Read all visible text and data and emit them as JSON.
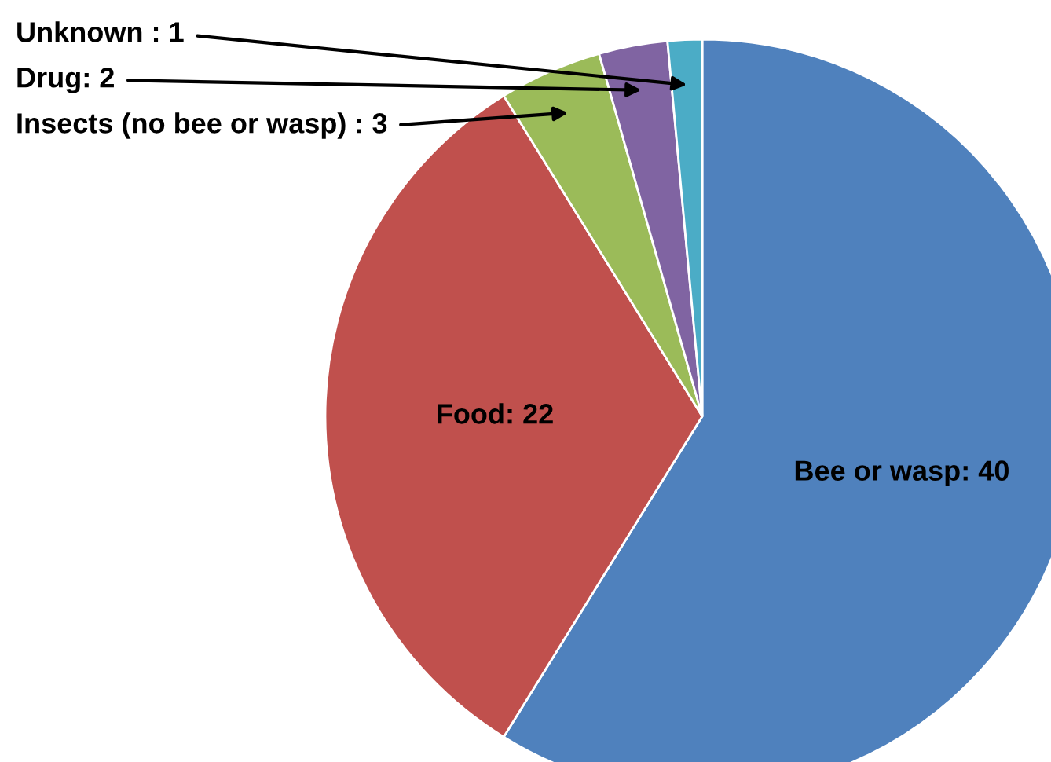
{
  "chart_data": {
    "type": "pie",
    "categories": [
      "Bee or wasp",
      "Food",
      "Insects (no bee or wasp)",
      "Drug",
      "Unknown"
    ],
    "values": [
      40,
      22,
      3,
      2,
      1
    ],
    "value_labels": [
      ": 40",
      ": 22",
      " : 3",
      ": 2",
      " : 1"
    ],
    "colors": [
      "#4f81bd",
      "#c0504d",
      "#9bbb59",
      "#8064a2",
      "#4bacc6"
    ],
    "legend": false
  }
}
